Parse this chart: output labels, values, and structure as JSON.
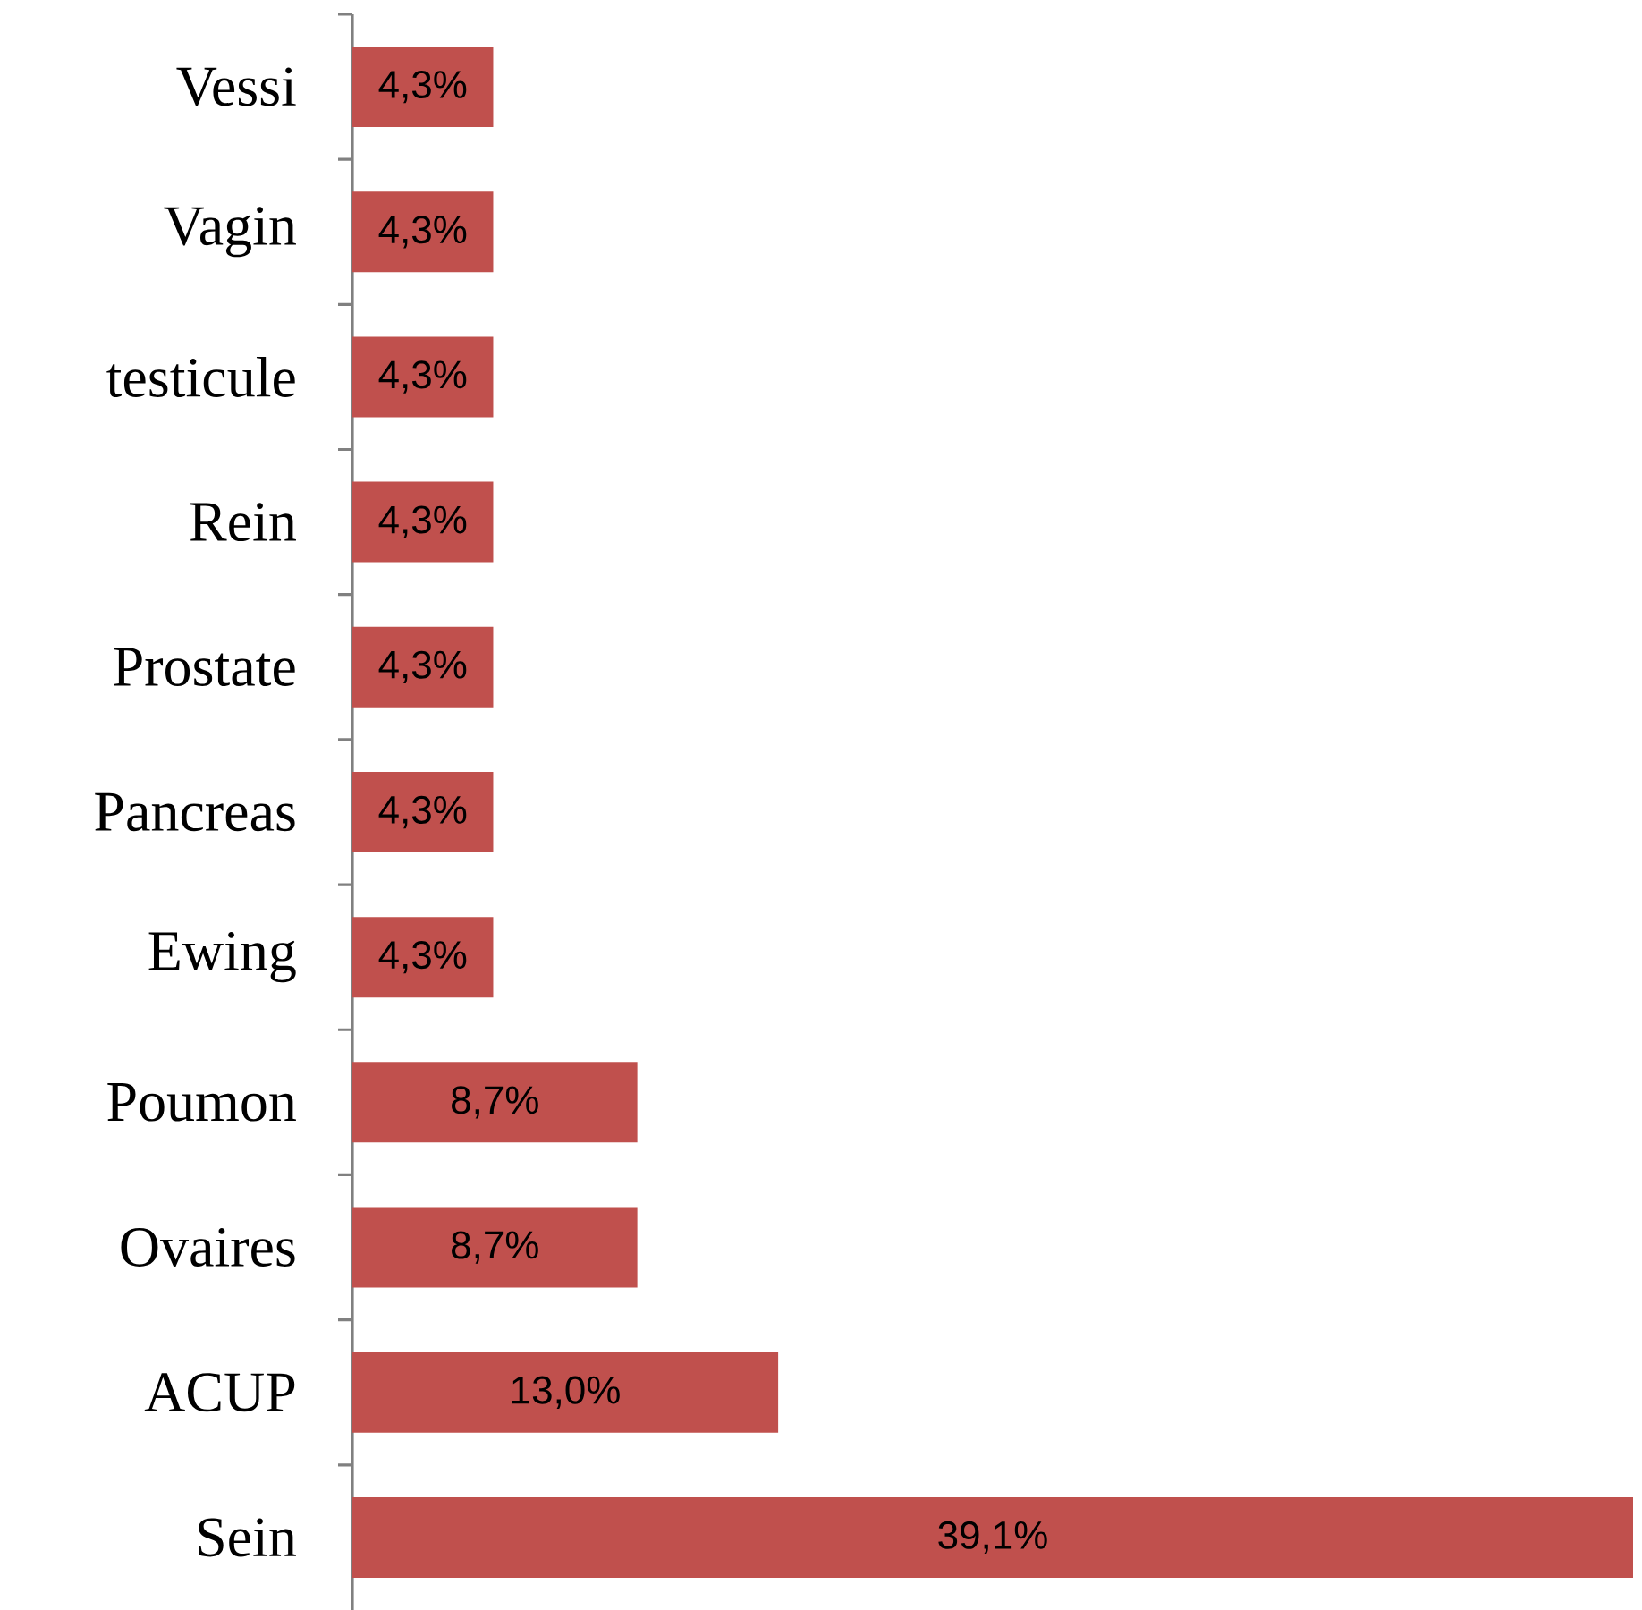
{
  "chart_data": {
    "type": "bar",
    "orientation": "horizontal",
    "color": "#c0504d",
    "categories": [
      "Vessi",
      "Vagin",
      "testicule",
      "Rein",
      "Prostate",
      "Pancreas",
      "Ewing",
      "Poumon",
      "Ovaires",
      "ACUP",
      "Sein"
    ],
    "values": [
      4.3,
      4.3,
      4.3,
      4.3,
      4.3,
      4.3,
      4.3,
      8.7,
      8.7,
      13.0,
      39.1
    ],
    "value_labels": [
      "4,3%",
      "4,3%",
      "4,3%",
      "4,3%",
      "4,3%",
      "4,3%",
      "4,3%",
      "8,7%",
      "8,7%",
      "13,0%",
      "39,1%"
    ]
  }
}
